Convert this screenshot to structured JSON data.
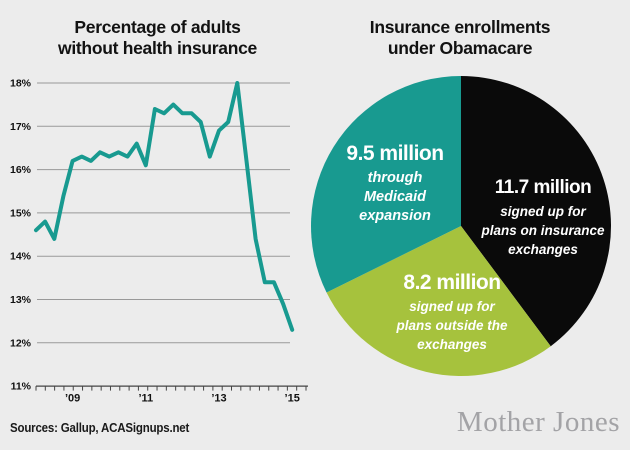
{
  "page": {
    "background_color": "#ececec",
    "accent_teal": "#189a90",
    "accent_green": "#a6c23d",
    "accent_black": "#0a0a0a"
  },
  "chart_data": [
    {
      "type": "line",
      "title": "Percentage of adults without health insurance",
      "title_lines": [
        "Percentage of adults",
        "without health insurance"
      ],
      "series_name": "% of adults without health insurance",
      "x": [
        "2008 Q1",
        "2008 Q2",
        "2008 Q3",
        "2008 Q4",
        "2009 Q1",
        "2009 Q2",
        "2009 Q3",
        "2009 Q4",
        "2010 Q1",
        "2010 Q2",
        "2010 Q3",
        "2010 Q4",
        "2011 Q1",
        "2011 Q2",
        "2011 Q3",
        "2011 Q4",
        "2012 Q1",
        "2012 Q2",
        "2012 Q3",
        "2012 Q4",
        "2013 Q1",
        "2013 Q2",
        "2013 Q3",
        "2013 Q4",
        "2014 Q1",
        "2014 Q2",
        "2014 Q3",
        "2014 Q4",
        "2015 Q1"
      ],
      "values": [
        14.6,
        14.8,
        14.4,
        15.4,
        16.2,
        16.3,
        16.2,
        16.4,
        16.3,
        16.4,
        16.3,
        16.6,
        16.1,
        17.4,
        17.3,
        17.5,
        17.3,
        17.3,
        17.1,
        16.3,
        16.9,
        17.1,
        18.0,
        16.2,
        14.4,
        13.4,
        13.4,
        12.9,
        12.3
      ],
      "ylim": [
        11,
        18
      ],
      "ytick_labels": [
        "18%",
        "17%",
        "16%",
        "15%",
        "14%",
        "13%",
        "12%",
        "11%"
      ],
      "ytick_values": [
        18,
        17,
        16,
        15,
        14,
        13,
        12,
        11
      ],
      "x_axis_labels": [
        {
          "label": "’09",
          "quarter_index": 4
        },
        {
          "label": "’11",
          "quarter_index": 12
        },
        {
          "label": "’13",
          "quarter_index": 20
        },
        {
          "label": "’15",
          "quarter_index": 28
        }
      ],
      "grid": true,
      "line_color": "#189a90",
      "gridline_color": "#999999",
      "axis_color": "#444444",
      "tick_count": 30
    },
    {
      "type": "pie",
      "title": "Insurance enrollments under Obamacare",
      "title_lines": [
        "Insurance enrollments",
        "under Obamacare"
      ],
      "units": "million people",
      "start_angle_deg": 0,
      "direction": "clockwise",
      "slices": [
        {
          "value": 11.7,
          "label": "11.7 million",
          "sublabel_lines": [
            "signed up for",
            "plans on insurance",
            "exchanges"
          ],
          "color": "#0a0a0a"
        },
        {
          "value": 8.2,
          "label": "8.2 million",
          "sublabel_lines": [
            "signed up for",
            "plans outside the",
            "exchanges"
          ],
          "color": "#a6c23d"
        },
        {
          "value": 9.5,
          "label": "9.5 million",
          "sublabel_lines": [
            "through",
            "Medicaid",
            "expansion"
          ],
          "color": "#189a90"
        }
      ]
    }
  ],
  "footer": {
    "sources": "Sources: Gallup, ACASignups.net",
    "brand": "Mother Jones"
  }
}
